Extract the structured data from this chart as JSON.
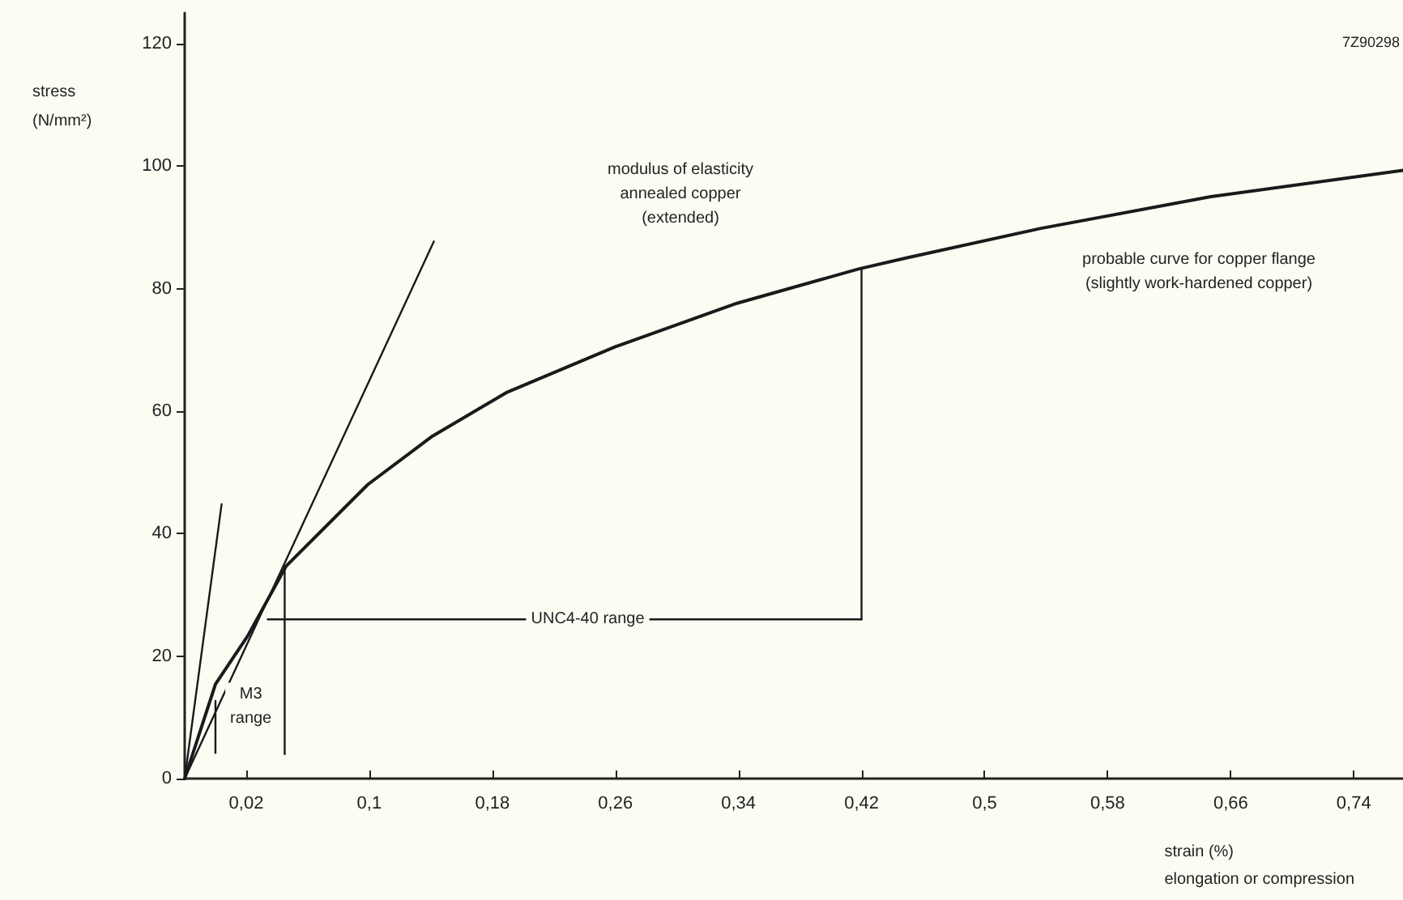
{
  "chart_data": {
    "type": "line",
    "ylabel": "stress\n(N/mm²)",
    "xlabel": "strain (%)\nelongation or compression",
    "xlim": [
      -0.02,
      0.772
    ],
    "ylim": [
      0,
      125
    ],
    "xticks": [
      {
        "value": 0.02,
        "label": "0,02"
      },
      {
        "value": 0.1,
        "label": "0,1"
      },
      {
        "value": 0.18,
        "label": "0,18"
      },
      {
        "value": 0.26,
        "label": "0,26"
      },
      {
        "value": 0.34,
        "label": "0,34"
      },
      {
        "value": 0.42,
        "label": "0,42"
      },
      {
        "value": 0.5,
        "label": "0,5"
      },
      {
        "value": 0.58,
        "label": "0,58"
      },
      {
        "value": 0.66,
        "label": "0,66"
      },
      {
        "value": 0.74,
        "label": "0,74"
      }
    ],
    "yticks": [
      0,
      20,
      40,
      60,
      80,
      100,
      120
    ],
    "grid": false,
    "marker": "none",
    "line_style": "solid",
    "series": [
      {
        "color": "#1a1a1a",
        "x": [
          -0.02,
          0.0,
          0.021,
          0.046,
          0.099,
          0.141,
          0.189,
          0.26,
          0.339,
          0.418,
          0.449,
          0.536,
          0.647,
          0.772
        ],
        "values": [
          0,
          15.4,
          23.3,
          34.7,
          48,
          55.9,
          63,
          70.5,
          77.6,
          83.2,
          85,
          89.8,
          95,
          99.3
        ]
      },
      {
        "color": "#1a1a1a",
        "x": [
          -0.02,
          0.142
        ],
        "values": [
          0,
          87.7
        ]
      },
      {
        "color": "#1a1a1a",
        "x": [
          -0.02,
          0.004
        ],
        "values": [
          0,
          44.8
        ]
      },
      {
        "color": "#1a1a1a",
        "x": [
          0.045,
          0.045
        ],
        "values": [
          34.7,
          4
        ]
      },
      {
        "color": "#1a1a1a",
        "x": [
          0.034,
          0.42
        ],
        "values": [
          26,
          26
        ]
      },
      {
        "color": "#1a1a1a",
        "x": [
          0.42,
          0.42
        ],
        "values": [
          83.2,
          26
        ]
      },
      {
        "color": "#1a1a1a",
        "x": [
          0.0,
          0.0
        ],
        "values": [
          12.7,
          4.2
        ]
      }
    ],
    "annotations": [
      "modulus of elasticity\nannealed copper\n(extended)",
      "probable curve for copper flange\n(slightly work-hardened copper)",
      {
        "text": "UNC4-40 range",
        "x": 0.242,
        "y": 26
      },
      {
        "text": "M3\nrange",
        "x": 0.023,
        "y": 11.7
      },
      "7Z90298"
    ]
  }
}
